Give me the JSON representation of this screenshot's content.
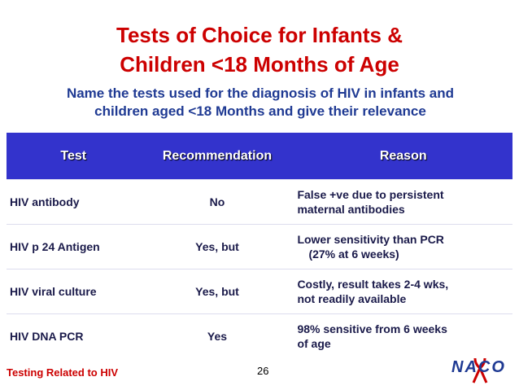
{
  "header": {
    "title": [
      "Tests of Choice for Infants &",
      "Children <18 Months of Age"
    ],
    "subtitle": "Name the tests used for the diagnosis of HIV in infants and children aged <18 Months and give their relevance"
  },
  "table": {
    "columns": [
      "Test",
      "Recommendation",
      "Reason"
    ],
    "rows": [
      [
        "HIV antibody",
        "No",
        [
          "False +ve due to persistent",
          "maternal antibodies"
        ]
      ],
      [
        "HIV p 24 Antigen",
        "Yes, but",
        [
          "Lower sensitivity than PCR",
          "(27% at 6 weeks)"
        ]
      ],
      [
        "HIV viral culture",
        "Yes, but",
        [
          "Costly, result takes 2-4 wks,",
          "not readily available"
        ]
      ],
      [
        "HIV DNA PCR",
        "Yes",
        [
          "98% sensitive from 6 weeks",
          "of age"
        ]
      ]
    ]
  },
  "footer": {
    "left": "Testing Related to HIV",
    "page": "26",
    "logo": "NACO"
  }
}
